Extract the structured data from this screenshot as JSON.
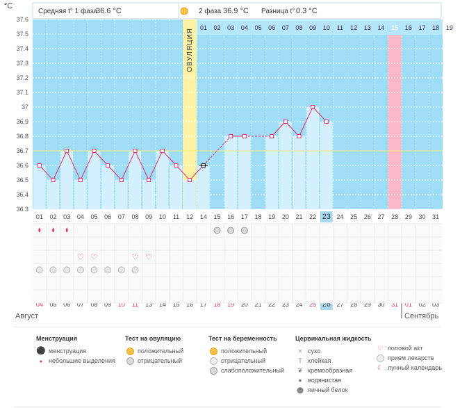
{
  "chart_data": {
    "type": "line",
    "ylabel": "°C",
    "ylim": [
      36.3,
      37.6
    ],
    "y_ticks": [
      "36.3",
      "36.4",
      "36.5",
      "36.6",
      "36.7",
      "36.8",
      "36.9",
      "37",
      "37.1",
      "37.2",
      "37.3",
      "37.4",
      "37.5",
      "37.6"
    ],
    "cover_line": 36.7,
    "header": {
      "phase1": "Средняя t° 1 фаза",
      "phase1_value": "36.6 °C",
      "phase2": "2 фаза",
      "phase2_value": "36.9 °C",
      "diff": "Разница t°",
      "diff_value": "0.3 °C"
    },
    "ovulation_label": "ОВУЛЯЦИЯ",
    "ovulation_day_index": 11,
    "highlight_day_index": 26,
    "today_index": 21,
    "phase2_days": [
      "01",
      "02",
      "03",
      "04",
      "05",
      "06",
      "07",
      "08",
      "09",
      "10",
      "11",
      "12",
      "13",
      "14",
      "15",
      "16",
      "17",
      "18",
      "19"
    ],
    "phase2_highlight": "15",
    "cycle_days": [
      "01",
      "02",
      "03",
      "04",
      "05",
      "06",
      "07",
      "08",
      "09",
      "10",
      "11",
      "12",
      "14",
      "15",
      "16",
      "17",
      "18",
      "19",
      "20",
      "21",
      "22",
      "23",
      "24",
      "25",
      "26",
      "27",
      "28",
      "29",
      "30",
      "31"
    ],
    "temperatures": [
      36.6,
      36.5,
      36.7,
      36.5,
      36.7,
      36.6,
      36.5,
      36.7,
      36.5,
      36.7,
      36.6,
      36.5,
      36.6,
      null,
      36.8,
      36.8,
      null,
      36.8,
      36.9,
      36.8,
      37.0,
      36.9,
      null,
      null,
      null,
      null,
      null,
      null,
      null,
      null
    ],
    "dates": [
      "04",
      "05",
      "06",
      "07",
      "08",
      "09",
      "10",
      "11",
      "13",
      "14",
      "15",
      "16",
      "17",
      "18",
      "19",
      "20",
      "21",
      "22",
      "23",
      "24",
      "25",
      "26",
      "27",
      "28",
      "29",
      "30",
      "31",
      "01",
      "02",
      "03"
    ],
    "red_dates": [
      "04",
      "10",
      "11",
      "17",
      "18",
      "24",
      "31",
      "01"
    ],
    "today_date": "25",
    "months": {
      "left": "Август",
      "right": "Сентябрь"
    },
    "menstruation_days": [
      0,
      1,
      2
    ],
    "ovulation_test_negative_days": [
      13,
      14,
      15
    ],
    "intercourse_days": [
      3,
      4,
      7,
      8
    ],
    "medication_days": [
      0,
      1,
      2,
      3,
      4,
      5,
      6,
      7
    ]
  },
  "legend": {
    "menstruation": {
      "title": "Менструация",
      "items": [
        "менструация",
        "небольшие выделения"
      ]
    },
    "ovulation_test": {
      "title": "Тест на овуляцию",
      "items": [
        "положительный",
        "отрицательный"
      ]
    },
    "pregnancy_test": {
      "title": "Тест на беременность",
      "items": [
        "положительный",
        "отрицательный",
        "слабоположительный"
      ]
    },
    "cervical": {
      "title": "Цервикальная жидкость",
      "items": [
        "сухо",
        "клейкая",
        "кремообразная",
        "водянистая",
        "яичный белок"
      ]
    },
    "other": {
      "items": [
        "половой акт",
        "прием лекарств",
        "лунный календарь"
      ]
    }
  },
  "colors": {
    "plot_bg": "#9fddf6",
    "bar": "#d4effd",
    "line": "#e0306c",
    "ovulation": "#fdf2a6",
    "highlight": "#f9b8c8",
    "today": "#a9d8ef",
    "red_text": "#e0306c"
  }
}
